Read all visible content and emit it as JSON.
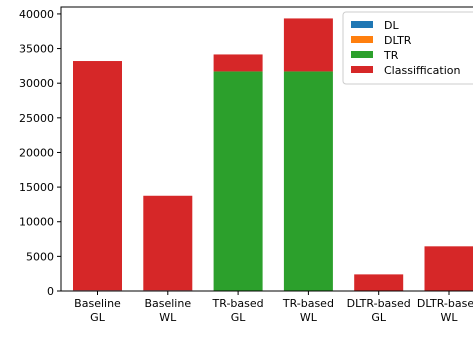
{
  "chart_data": {
    "type": "bar",
    "stacked": true,
    "categories": [
      "Baseline GL",
      "Baseline WL",
      "TR-based GL",
      "TR-based WL",
      "DLTR-based GL",
      "DLTR-based WL"
    ],
    "category_lines": [
      [
        "Baseline",
        "GL"
      ],
      [
        "Baseline",
        "WL"
      ],
      [
        "TR-based",
        "GL"
      ],
      [
        "TR-based",
        "WL"
      ],
      [
        "DLTR-based",
        "GL"
      ],
      [
        "DLTR-based",
        "WL"
      ]
    ],
    "series": [
      {
        "name": "DL",
        "color": "#1f77b4",
        "values": [
          100,
          100,
          0,
          0,
          0,
          0
        ]
      },
      {
        "name": "DLTR",
        "color": "#ff7f0e",
        "values": [
          0,
          0,
          0,
          0,
          0,
          0
        ]
      },
      {
        "name": "TR",
        "color": "#2ca02c",
        "values": [
          0,
          0,
          31700,
          31700,
          0,
          0
        ]
      },
      {
        "name": "Classiffication",
        "color": "#d62728",
        "values": [
          33100,
          13650,
          2450,
          7650,
          2400,
          6450
        ]
      }
    ],
    "ylim": [
      0,
      41000
    ],
    "yticks": [
      0,
      5000,
      10000,
      15000,
      20000,
      25000,
      30000,
      35000,
      40000
    ],
    "legend_position": "top-right",
    "grid": false
  }
}
